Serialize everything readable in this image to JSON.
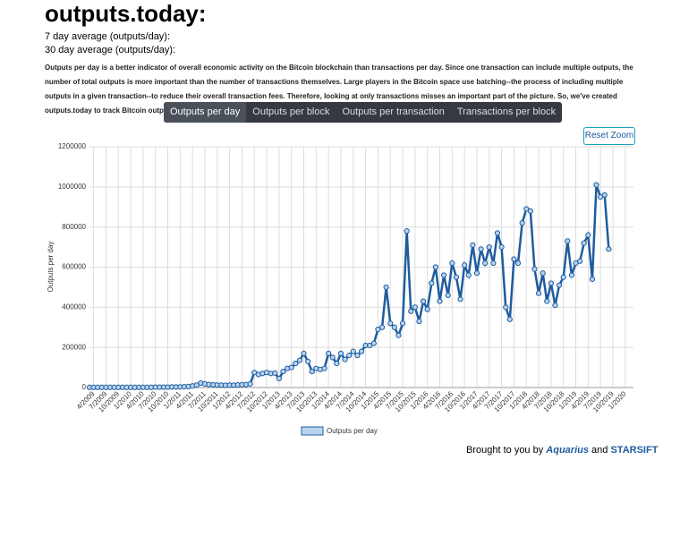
{
  "page": {
    "title": "outputs.today:",
    "avg7": "7 day average (outputs/day):",
    "avg30": "30 day average (outputs/day):",
    "description": "Outputs per day is a better indicator of overall economic activity on the Bitcoin blockchain than transactions per day. Since one transaction can include multiple outputs, the number of total outputs is more important than the number of transactions themselves. Large players in the Bitcoin space use batching--the process of including multiple outputs in a given transaction--to reduce their overall transaction fees. Therefore, looking at only transactions misses an important part of the picture. So, we've created outputs.today to track Bitcoin outputs.",
    "tabs": [
      "Outputs per day",
      "Outputs per block",
      "Outputs per transaction",
      "Transactions per block"
    ],
    "reset_zoom": "Reset Zoom",
    "footer": {
      "prefix": "Brought to you by",
      "brand1": "Aquarius",
      "joiner": "and",
      "brand2": "STARSIFT"
    }
  },
  "chart_data": {
    "type": "line",
    "ylabel": "Outputs per day",
    "x": [
      "3/2009",
      "4/2009",
      "5/2009",
      "6/2009",
      "7/2009",
      "8/2009",
      "9/2009",
      "10/2009",
      "11/2009",
      "12/2009",
      "1/2010",
      "2/2010",
      "3/2010",
      "4/2010",
      "5/2010",
      "6/2010",
      "7/2010",
      "8/2010",
      "9/2010",
      "10/2010",
      "11/2010",
      "12/2010",
      "1/2011",
      "2/2011",
      "3/2011",
      "4/2011",
      "5/2011",
      "6/2011",
      "7/2011",
      "8/2011",
      "9/2011",
      "10/2011",
      "11/2011",
      "12/2011",
      "1/2012",
      "2/2012",
      "3/2012",
      "4/2012",
      "5/2012",
      "6/2012",
      "7/2012",
      "8/2012",
      "9/2012",
      "10/2012",
      "11/2012",
      "12/2012",
      "1/2013",
      "2/2013",
      "3/2013",
      "4/2013",
      "5/2013",
      "6/2013",
      "7/2013",
      "8/2013",
      "9/2013",
      "10/2013",
      "11/2013",
      "12/2013",
      "1/2014",
      "2/2014",
      "3/2014",
      "4/2014",
      "5/2014",
      "6/2014",
      "7/2014",
      "8/2014",
      "9/2014",
      "10/2014",
      "11/2014",
      "12/2014",
      "1/2015",
      "2/2015",
      "3/2015",
      "4/2015",
      "5/2015",
      "6/2015",
      "7/2015",
      "8/2015",
      "9/2015",
      "10/2015",
      "11/2015",
      "12/2015",
      "1/2016",
      "2/2016",
      "3/2016",
      "4/2016",
      "5/2016",
      "6/2016",
      "7/2016",
      "8/2016",
      "9/2016",
      "10/2016",
      "11/2016",
      "12/2016",
      "1/2017",
      "2/2017",
      "3/2017",
      "4/2017",
      "5/2017",
      "6/2017",
      "7/2017",
      "8/2017",
      "9/2017",
      "10/2017",
      "11/2017",
      "12/2017",
      "1/2018",
      "2/2018",
      "3/2018",
      "4/2018",
      "5/2018",
      "6/2018",
      "7/2018",
      "8/2018",
      "9/2018",
      "10/2018",
      "11/2018",
      "12/2018",
      "1/2019",
      "2/2019",
      "3/2019",
      "4/2019",
      "5/2019",
      "6/2019",
      "7/2019",
      "8/2019",
      "9/2019"
    ],
    "series": [
      {
        "name": "Outputs per day",
        "color": "#1f5c9e",
        "fill": "#b8d4f0",
        "values": [
          1000,
          1000,
          1000,
          1000,
          1000,
          1000,
          1000,
          1000,
          1000,
          1000,
          1000,
          1000,
          1000,
          1000,
          1000,
          1000,
          2000,
          2000,
          2000,
          2000,
          3000,
          3000,
          3000,
          4000,
          5000,
          8000,
          12000,
          22000,
          18000,
          15000,
          14000,
          12000,
          12000,
          11000,
          12000,
          12000,
          13000,
          14000,
          15000,
          18000,
          75000,
          65000,
          70000,
          75000,
          70000,
          72000,
          45000,
          80000,
          95000,
          100000,
          120000,
          135000,
          170000,
          130000,
          80000,
          95000,
          90000,
          95000,
          170000,
          150000,
          120000,
          170000,
          140000,
          160000,
          180000,
          160000,
          180000,
          210000,
          210000,
          220000,
          290000,
          300000,
          500000,
          320000,
          300000,
          260000,
          320000,
          780000,
          380000,
          400000,
          330000,
          430000,
          390000,
          520000,
          600000,
          430000,
          560000,
          460000,
          620000,
          550000,
          440000,
          610000,
          560000,
          710000,
          570000,
          690000,
          620000,
          700000,
          620000,
          770000,
          700000,
          400000,
          340000,
          640000,
          620000,
          820000,
          890000,
          880000,
          590000,
          470000,
          570000,
          430000,
          520000,
          410000,
          510000,
          550000,
          730000,
          560000,
          620000,
          630000,
          720000,
          760000,
          540000,
          1010000,
          950000,
          960000,
          690000
        ]
      }
    ],
    "xlim": [
      "3/2009",
      "3/2020"
    ],
    "xticks": [
      "4/2009",
      "7/2009",
      "10/2009",
      "1/2010",
      "4/2010",
      "7/2010",
      "10/2010",
      "1/2011",
      "4/2011",
      "7/2011",
      "10/2011",
      "1/2012",
      "4/2012",
      "7/2012",
      "10/2012",
      "1/2013",
      "4/2013",
      "7/2013",
      "10/2013",
      "1/2014",
      "4/2014",
      "7/2014",
      "10/2014",
      "1/2015",
      "4/2015",
      "7/2015",
      "10/2015",
      "1/2016",
      "4/2016",
      "7/2016",
      "10/2016",
      "1/2017",
      "4/2017",
      "7/2017",
      "10/2017",
      "1/2018",
      "4/2018",
      "7/2018",
      "10/2018",
      "1/2019",
      "4/2019",
      "7/2019",
      "10/2019",
      "1/2020"
    ],
    "ylim": [
      0,
      1200000
    ],
    "yticks": [
      0,
      200000,
      400000,
      600000,
      800000,
      1000000,
      1200000
    ],
    "grid": true
  }
}
